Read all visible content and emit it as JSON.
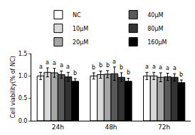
{
  "chart_data": {
    "type": "bar",
    "y_label": "Cell viability(% of NC)",
    "categories": [
      "24h",
      "48h",
      "72h"
    ],
    "series": [
      {
        "name": "NC",
        "color": "#ffffff",
        "values": [
          1.0,
          1.0,
          1.0
        ],
        "errors": [
          0.08,
          0.07,
          0.08
        ],
        "letters": [
          "a",
          "b",
          "a"
        ]
      },
      {
        "name": "10μM",
        "color": "#d9d9d9",
        "values": [
          1.08,
          1.03,
          1.0
        ],
        "errors": [
          0.1,
          0.08,
          0.08
        ],
        "letters": [
          "a",
          "b",
          "a"
        ]
      },
      {
        "name": "20μM",
        "color": "#a6a6a6",
        "values": [
          1.07,
          1.04,
          0.97
        ],
        "errors": [
          0.1,
          0.08,
          0.1
        ],
        "letters": [
          "a",
          "b",
          "a"
        ]
      },
      {
        "name": "40μM",
        "color": "#595959",
        "values": [
          1.03,
          1.05,
          0.98
        ],
        "errors": [
          0.08,
          0.15,
          0.08
        ],
        "letters": [
          "a",
          "a",
          "a"
        ]
      },
      {
        "name": "80μM",
        "color": "#333333",
        "values": [
          0.98,
          0.97,
          0.97
        ],
        "errors": [
          0.1,
          0.1,
          0.08
        ],
        "letters": [
          "a",
          "b",
          "a"
        ]
      },
      {
        "name": "160μM",
        "color": "#000000",
        "values": [
          0.88,
          0.88,
          0.85
        ],
        "errors": [
          0.06,
          0.07,
          0.06
        ],
        "letters": [
          "b",
          "b",
          "b"
        ]
      }
    ],
    "ylim": [
      0,
      1.5
    ],
    "yticks": [
      {
        "value": 0,
        "label": "0.0"
      },
      0.5,
      {
        "value": 1,
        "label": "1.0"
      },
      1.5
    ],
    "legend": "top",
    "grid": false
  }
}
